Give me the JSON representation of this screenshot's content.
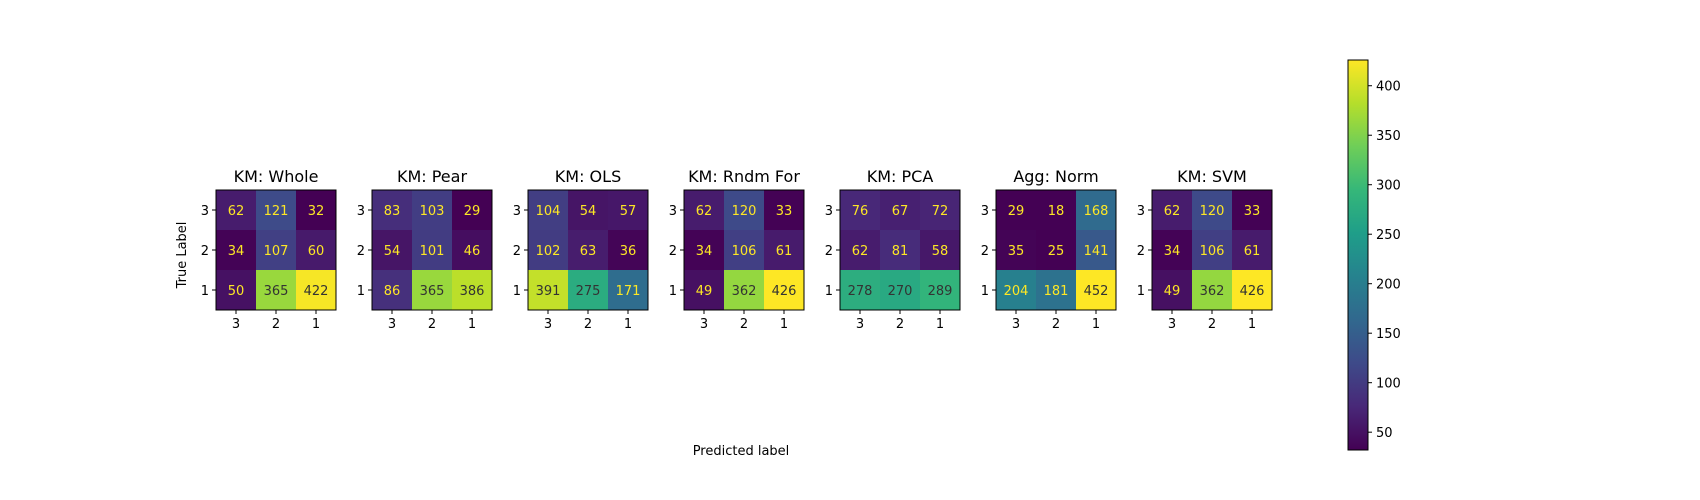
{
  "chart_data": {
    "type": "heatmap",
    "xlabel": "Predicted label",
    "ylabel": "True Label",
    "row_labels": [
      "3",
      "2",
      "1"
    ],
    "col_labels": [
      "3",
      "2",
      "1"
    ],
    "colormap": "viridis",
    "color_range": [
      32,
      426
    ],
    "colorbar_ticks": [
      50,
      100,
      150,
      200,
      250,
      300,
      350,
      400
    ],
    "text_colors": {
      "on_dark": "#fde725",
      "on_light": "#333333"
    },
    "panels": [
      {
        "title": "KM: Whole",
        "matrix": [
          [
            62,
            121,
            32
          ],
          [
            34,
            107,
            60
          ],
          [
            50,
            365,
            422
          ]
        ]
      },
      {
        "title": "KM: Pear",
        "matrix": [
          [
            83,
            103,
            29
          ],
          [
            54,
            101,
            46
          ],
          [
            86,
            365,
            386
          ]
        ]
      },
      {
        "title": "KM: OLS",
        "matrix": [
          [
            104,
            54,
            57
          ],
          [
            102,
            63,
            36
          ],
          [
            391,
            275,
            171
          ]
        ]
      },
      {
        "title": "KM: Rndm For",
        "matrix": [
          [
            62,
            120,
            33
          ],
          [
            34,
            106,
            61
          ],
          [
            49,
            362,
            426
          ]
        ]
      },
      {
        "title": "KM: PCA",
        "matrix": [
          [
            76,
            67,
            72
          ],
          [
            62,
            81,
            58
          ],
          [
            278,
            270,
            289
          ]
        ]
      },
      {
        "title": "Agg: Norm",
        "matrix": [
          [
            29,
            18,
            168
          ],
          [
            35,
            25,
            141
          ],
          [
            204,
            181,
            452
          ]
        ]
      },
      {
        "title": "KM: SVM",
        "matrix": [
          [
            62,
            120,
            33
          ],
          [
            34,
            106,
            61
          ],
          [
            49,
            362,
            426
          ]
        ]
      }
    ]
  }
}
